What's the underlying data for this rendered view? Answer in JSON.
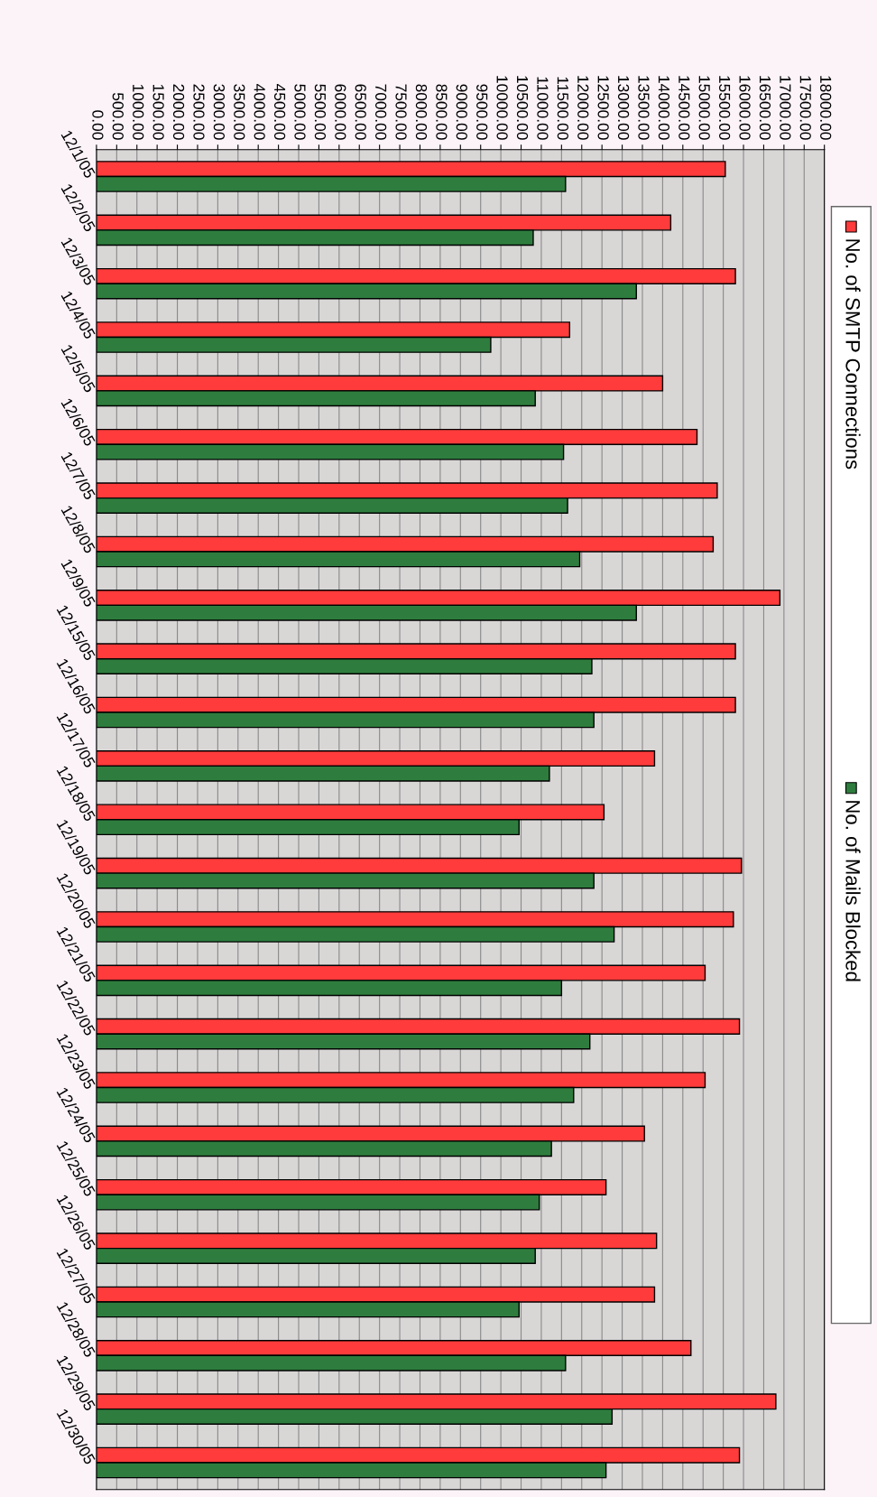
{
  "chart_data": {
    "type": "bar",
    "orientation": "horizontal",
    "categories": [
      "12/1/05",
      "12/2/05",
      "12/3/05",
      "12/4/05",
      "12/5/05",
      "12/6/05",
      "12/7/05",
      "12/8/05",
      "12/9/05",
      "12/15/05",
      "12/16/05",
      "12/17/05",
      "12/18/05",
      "12/19/05",
      "12/20/05",
      "12/21/05",
      "12/22/05",
      "12/23/05",
      "12/24/05",
      "12/25/05",
      "12/26/05",
      "12/27/05",
      "12/28/05",
      "12/29/05",
      "12/30/05"
    ],
    "series": [
      {
        "name": "No. of SMTP Connections",
        "color": "#ff3b3b",
        "values": [
          15550,
          14200,
          15800,
          11700,
          14000,
          14850,
          15350,
          15250,
          16900,
          15800,
          15800,
          13800,
          12550,
          15950,
          15750,
          15050,
          15900,
          15050,
          13550,
          12600,
          13850,
          13800,
          14700,
          16800,
          15900
        ]
      },
      {
        "name": "No. of Mails Blocked",
        "color": "#2e7d3e",
        "values": [
          11600,
          10800,
          13350,
          9750,
          10850,
          11550,
          11650,
          11950,
          13350,
          12250,
          12300,
          11200,
          10450,
          12300,
          12800,
          11500,
          12200,
          11800,
          11250,
          10950,
          10850,
          10450,
          11600,
          12750,
          12600
        ]
      }
    ],
    "xlim": [
      0,
      18000
    ],
    "xticks": [
      {
        "value": 0,
        "label": "0.00"
      },
      {
        "value": 500,
        "label": "500.00"
      },
      {
        "value": 1000,
        "label": "1000.00"
      },
      {
        "value": 1500,
        "label": "1500.00"
      },
      {
        "value": 2000,
        "label": "2000.00"
      },
      {
        "value": 2500,
        "label": "2500.00"
      },
      {
        "value": 3000,
        "label": "3000.00"
      },
      {
        "value": 3500,
        "label": "3500.00"
      },
      {
        "value": 4000,
        "label": "4000.00"
      },
      {
        "value": 4500,
        "label": "4500.00"
      },
      {
        "value": 5000,
        "label": "5000.00"
      },
      {
        "value": 5500,
        "label": "5500.00"
      },
      {
        "value": 6000,
        "label": "6000.00"
      },
      {
        "value": 6500,
        "label": "6500.00"
      },
      {
        "value": 7000,
        "label": "7000.00"
      },
      {
        "value": 7500,
        "label": "7500.00"
      },
      {
        "value": 8000,
        "label": "8000.00"
      },
      {
        "value": 8500,
        "label": "8500.00"
      },
      {
        "value": 9000,
        "label": "9000.00"
      },
      {
        "value": 9500,
        "label": "9500.00"
      },
      {
        "value": 10000,
        "label": "10000.00"
      },
      {
        "value": 10500,
        "label": "10500.00"
      },
      {
        "value": 11000,
        "label": "11000.00"
      },
      {
        "value": 11500,
        "label": "11500.00"
      },
      {
        "value": 12000,
        "label": "12000.00"
      },
      {
        "value": 12500,
        "label": "12500.00"
      },
      {
        "value": 13000,
        "label": "13000.00"
      },
      {
        "value": 13500,
        "label": "13500.00"
      },
      {
        "value": 14000,
        "label": "14000.00"
      },
      {
        "value": 14500,
        "label": "14500.00"
      },
      {
        "value": 15000,
        "label": "15000.00"
      },
      {
        "value": 15500,
        "label": "15500.00"
      },
      {
        "value": 16000,
        "label": "16000.00"
      },
      {
        "value": 16500,
        "label": "16500.00"
      },
      {
        "value": 17000,
        "label": "17000.00"
      },
      {
        "value": 17500,
        "label": "17500.00"
      },
      {
        "value": 18000,
        "label": "18000.00"
      }
    ],
    "grid": "x",
    "legend": "right"
  }
}
